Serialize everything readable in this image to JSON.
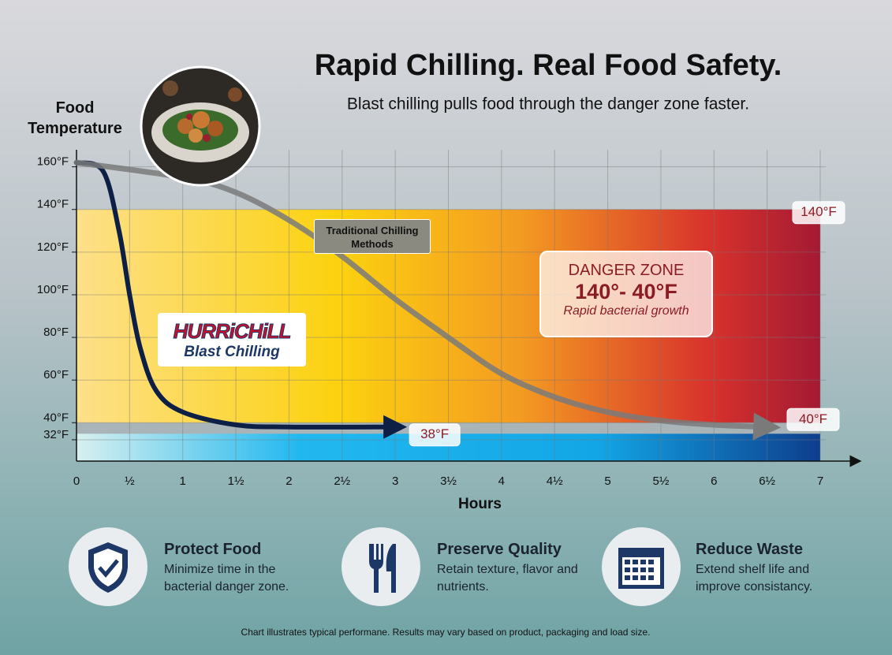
{
  "header": {
    "title": "Rapid Chilling. Real Food Safety.",
    "subtitle": "Blast chilling pulls food through the danger zone faster."
  },
  "chart_data": {
    "type": "line",
    "y_label": "Food Temperature",
    "x_label": "Hours",
    "xlim": [
      0,
      7
    ],
    "ylim": [
      22,
      168
    ],
    "xticks": [
      0,
      {
        "value": 0.5,
        "label": "½"
      },
      1,
      {
        "value": 1.5,
        "label": "1½"
      },
      2,
      {
        "value": 2.5,
        "label": "2½"
      },
      3,
      {
        "value": 3.5,
        "label": "3½"
      },
      4,
      {
        "value": 4.5,
        "label": "4½"
      },
      5,
      {
        "value": 5.5,
        "label": "5½"
      },
      6,
      {
        "value": 6.5,
        "label": "6½"
      },
      7
    ],
    "yticks": [
      {
        "value": 32,
        "label": "32°F"
      },
      {
        "value": 40,
        "label": "40°F"
      },
      {
        "value": 60,
        "label": "60°F"
      },
      {
        "value": 80,
        "label": "80°F"
      },
      {
        "value": 100,
        "label": "100°F"
      },
      {
        "value": 120,
        "label": "120°F"
      },
      {
        "value": 140,
        "label": "140°F"
      },
      {
        "value": 160,
        "label": "160°F"
      }
    ],
    "grid": true,
    "danger_zone": {
      "top": 140,
      "bottom": 40,
      "title": "DANGER ZONE",
      "range_label": "140°- 40°F",
      "note": "Rapid bacterial growth",
      "top_label": "140°F",
      "bottom_label": "40°F"
    },
    "series": [
      {
        "brand": "HURRiCHiLL",
        "name": "Blast Chilling",
        "color": "#0d1f45",
        "end_label": "38°F",
        "x": [
          0,
          0.25,
          0.4,
          0.5,
          0.6,
          0.75,
          1,
          1.5,
          2,
          3
        ],
        "values": [
          162,
          158,
          130,
          100,
          75,
          55,
          45,
          39,
          38,
          38
        ]
      },
      {
        "name": "Traditional Chilling Methods",
        "color": "#7a7a7a",
        "x": [
          0,
          1,
          1.5,
          2,
          2.5,
          3,
          3.5,
          4,
          4.5,
          5,
          5.5,
          6,
          6.5
        ],
        "values": [
          162,
          155,
          148,
          135,
          118,
          98,
          80,
          63,
          52,
          45,
          41,
          39,
          38
        ]
      }
    ]
  },
  "features": [
    {
      "title": "Protect Food",
      "text": "Minimize time in the bacterial danger zone."
    },
    {
      "title": "Preserve Quality",
      "text": "Retain texture, flavor and nutrients."
    },
    {
      "title": "Reduce Waste",
      "text": "Extend shelf life and improve consistancy."
    }
  ],
  "footnote": "Chart illustrates typical performane. Results may vary based on product, packaging and load size."
}
